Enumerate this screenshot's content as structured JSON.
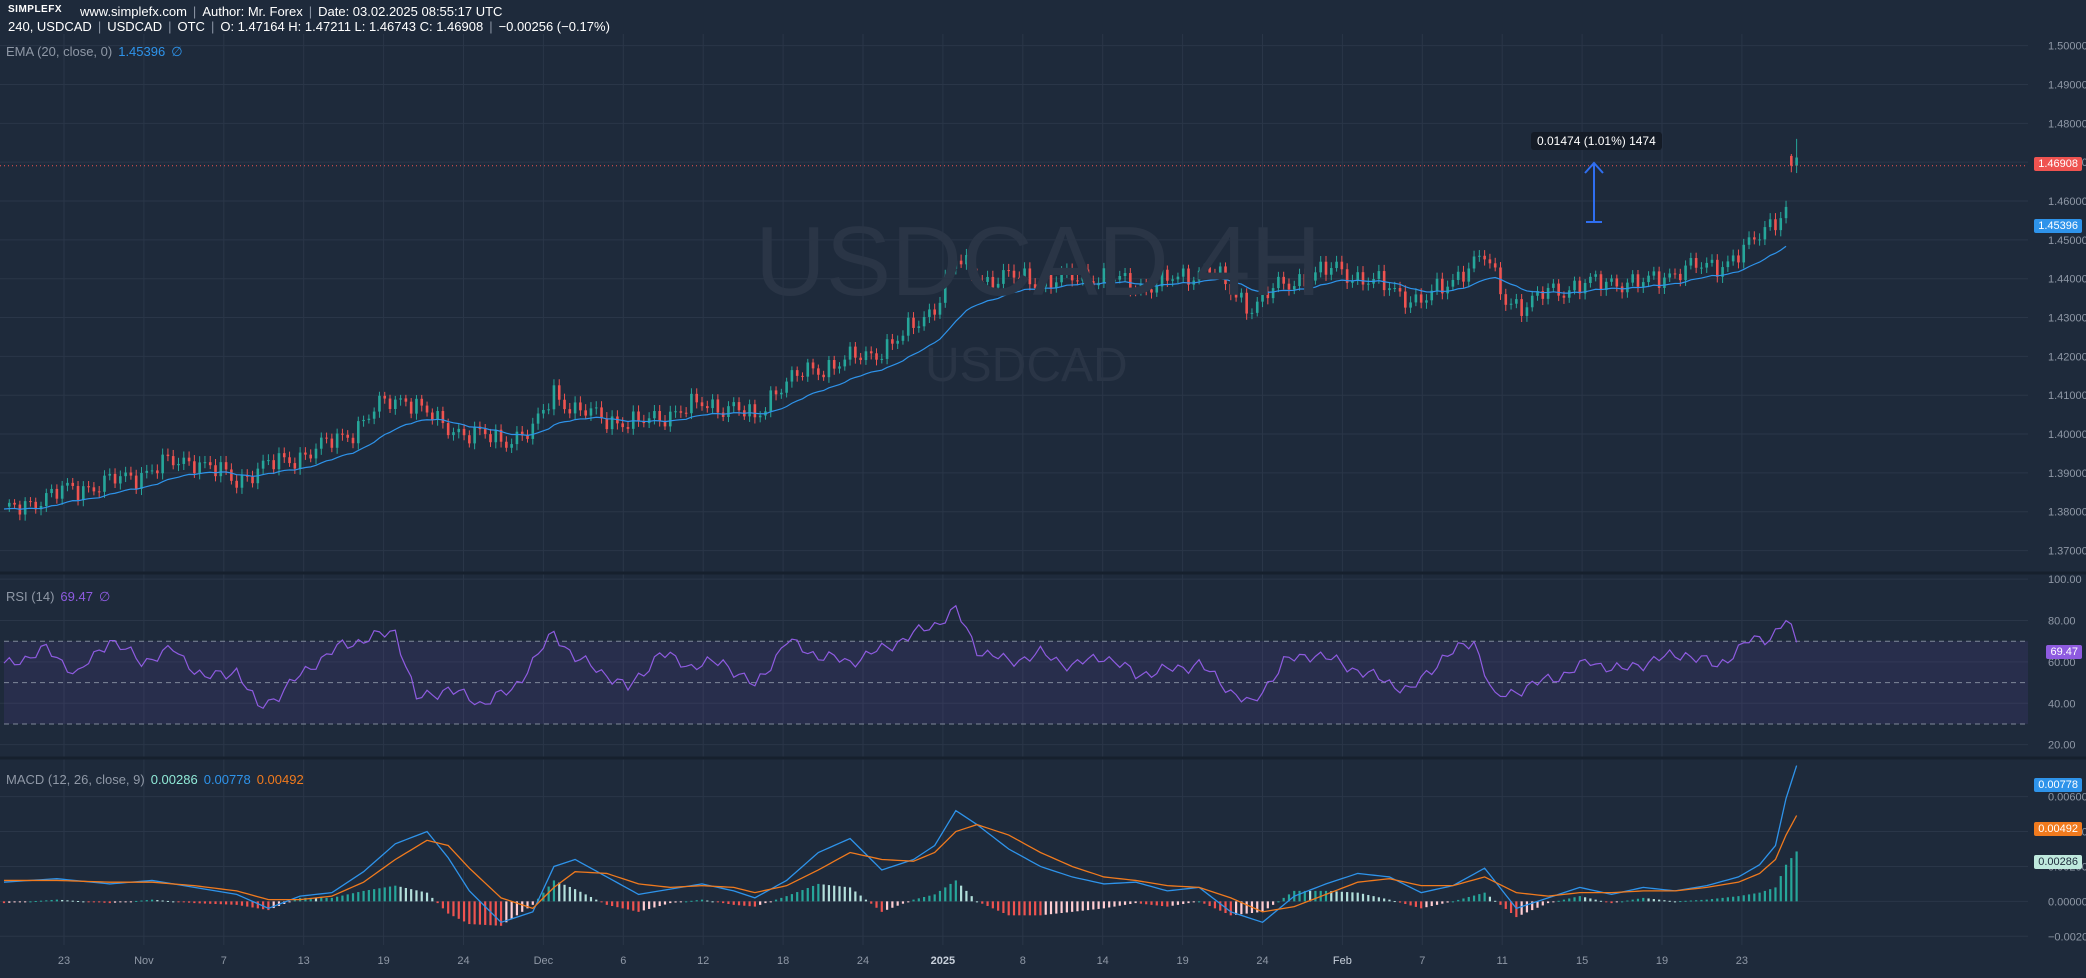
{
  "header": {
    "logo": "SIMPLEFX",
    "site": "www.simplefx.com",
    "author": "Author: Mr. Forex",
    "date": "Date: 03.02.2025 08:55:17 UTC",
    "interval": "240, USDCAD",
    "symbol": "USDCAD",
    "exchange": "OTC",
    "ohlc": "O: 1.47164 H: 1.47211 L: 1.46743 C: 1.46908",
    "change": "−0.00256 (−0.17%)"
  },
  "watermark": {
    "title": "USDCAD 4H",
    "symbol": "USDCAD"
  },
  "ema_legend": {
    "label": "EMA (20, close, 0)",
    "value": "1.45396",
    "icon": "∅"
  },
  "rsi_legend": {
    "label": "RSI (14)",
    "value": "69.47",
    "icon": "∅"
  },
  "macd_legend": {
    "label": "MACD (12, 26, close, 9)",
    "hist": "0.00286",
    "macd": "0.00778",
    "signal": "0.00492"
  },
  "callout": "0.01474 (1.01%) 1474",
  "badges": {
    "last_price": "1.46908",
    "ema": "1.45396",
    "rsi": "69.47",
    "macd": "0.00778",
    "signal": "0.00492",
    "hist": "0.00286"
  },
  "colors": {
    "background": "#1e2a3b",
    "up": "#26a69a",
    "down": "#ef5350",
    "ema": "#2e93ea",
    "rsi": "#8e5be0",
    "macd": "#2e93ea",
    "signal": "#f07a1e",
    "grid": "#2a3648"
  },
  "chart_data": [
    {
      "type": "candlestick",
      "title": "USDCAD 4H",
      "y_ticks": [
        "1.50000",
        "1.49000",
        "1.48000",
        "1.47000",
        "1.46000",
        "1.45000",
        "1.44000",
        "1.43000",
        "1.42000",
        "1.41000",
        "1.40000",
        "1.39000",
        "1.38000",
        "1.37000"
      ],
      "ylim": [
        1.365,
        1.503
      ],
      "x_ticks": [
        "23",
        "Nov",
        "7",
        "13",
        "19",
        "24",
        "Dec",
        "6",
        "12",
        "18",
        "24",
        "2025",
        "8",
        "14",
        "19",
        "24",
        "Feb",
        "7",
        "11",
        "15",
        "19",
        "23"
      ],
      "close_path": [
        [
          0,
          1.3795
        ],
        [
          6,
          1.383
        ],
        [
          12,
          1.3855
        ],
        [
          18,
          1.387
        ],
        [
          24,
          1.389
        ],
        [
          30,
          1.392
        ],
        [
          36,
          1.3935
        ],
        [
          40,
          1.3905
        ],
        [
          44,
          1.388
        ],
        [
          48,
          1.391
        ],
        [
          54,
          1.3935
        ],
        [
          60,
          1.3965
        ],
        [
          66,
          1.401
        ],
        [
          72,
          1.408
        ],
        [
          76,
          1.4095
        ],
        [
          82,
          1.403
        ],
        [
          88,
          1.4
        ],
        [
          94,
          1.3985
        ],
        [
          100,
          1.4005
        ],
        [
          104,
          1.411
        ],
        [
          108,
          1.406
        ],
        [
          114,
          1.404
        ],
        [
          120,
          1.4025
        ],
        [
          126,
          1.4055
        ],
        [
          132,
          1.4075
        ],
        [
          138,
          1.407
        ],
        [
          142,
          1.4035
        ],
        [
          146,
          1.412
        ],
        [
          152,
          1.416
        ],
        [
          158,
          1.4185
        ],
        [
          164,
          1.4205
        ],
        [
          170,
          1.425
        ],
        [
          176,
          1.433
        ],
        [
          180,
          1.4445
        ],
        [
          186,
          1.4395
        ],
        [
          192,
          1.4405
        ],
        [
          198,
          1.439
        ],
        [
          204,
          1.441
        ],
        [
          210,
          1.4395
        ],
        [
          216,
          1.438
        ],
        [
          222,
          1.44
        ],
        [
          228,
          1.443
        ],
        [
          232,
          1.4365
        ],
        [
          236,
          1.433
        ],
        [
          240,
          1.437
        ],
        [
          246,
          1.4405
        ],
        [
          252,
          1.4425
        ],
        [
          256,
          1.4405
        ],
        [
          262,
          1.4375
        ],
        [
          268,
          1.434
        ],
        [
          272,
          1.4375
        ],
        [
          276,
          1.4425
        ],
        [
          280,
          1.4455
        ],
        [
          284,
          1.435
        ],
        [
          288,
          1.4325
        ],
        [
          292,
          1.437
        ],
        [
          298,
          1.438
        ],
        [
          304,
          1.4395
        ],
        [
          310,
          1.4385
        ],
        [
          314,
          1.441
        ],
        [
          318,
          1.4425
        ],
        [
          322,
          1.443
        ],
        [
          326,
          1.4445
        ],
        [
          330,
          1.448
        ],
        [
          334,
          1.4545
        ],
        [
          337,
          1.458
        ]
      ],
      "extra_candles": [
        [
          338,
          1.4716,
          1.4721,
          1.4674,
          1.4691
        ],
        [
          339,
          1.4691,
          1.476,
          1.4672,
          1.4712
        ]
      ],
      "series": [
        {
          "name": "EMA (20, close, 0)",
          "last": 1.45396
        }
      ],
      "last_price": 1.46908,
      "measure": {
        "label": "0.01474 (1.01%) 1474"
      }
    },
    {
      "type": "line",
      "title": "RSI (14)",
      "y_ticks": [
        "100.00",
        "80.00",
        "60.00",
        "40.00",
        "20.00"
      ],
      "ylim": [
        15,
        102
      ],
      "bands": [
        30,
        50,
        70
      ],
      "path": [
        [
          0,
          58
        ],
        [
          8,
          66
        ],
        [
          14,
          54
        ],
        [
          20,
          71
        ],
        [
          26,
          60
        ],
        [
          32,
          66
        ],
        [
          38,
          52
        ],
        [
          44,
          56
        ],
        [
          48,
          38
        ],
        [
          52,
          44
        ],
        [
          58,
          58
        ],
        [
          64,
          68
        ],
        [
          70,
          72
        ],
        [
          74,
          75
        ],
        [
          78,
          42
        ],
        [
          84,
          47
        ],
        [
          90,
          40
        ],
        [
          96,
          46
        ],
        [
          100,
          60
        ],
        [
          104,
          74
        ],
        [
          108,
          62
        ],
        [
          114,
          54
        ],
        [
          118,
          47
        ],
        [
          124,
          64
        ],
        [
          130,
          58
        ],
        [
          136,
          60
        ],
        [
          142,
          48
        ],
        [
          148,
          70
        ],
        [
          154,
          63
        ],
        [
          160,
          60
        ],
        [
          166,
          66
        ],
        [
          170,
          71
        ],
        [
          176,
          78
        ],
        [
          180,
          85
        ],
        [
          184,
          66
        ],
        [
          190,
          60
        ],
        [
          196,
          64
        ],
        [
          202,
          58
        ],
        [
          208,
          63
        ],
        [
          214,
          54
        ],
        [
          220,
          56
        ],
        [
          226,
          59
        ],
        [
          232,
          46
        ],
        [
          236,
          39
        ],
        [
          242,
          60
        ],
        [
          248,
          64
        ],
        [
          254,
          58
        ],
        [
          260,
          52
        ],
        [
          266,
          46
        ],
        [
          272,
          62
        ],
        [
          278,
          70
        ],
        [
          282,
          42
        ],
        [
          288,
          48
        ],
        [
          294,
          53
        ],
        [
          300,
          60
        ],
        [
          306,
          56
        ],
        [
          312,
          61
        ],
        [
          318,
          64
        ],
        [
          324,
          58
        ],
        [
          330,
          70
        ],
        [
          334,
          72
        ],
        [
          337,
          80
        ],
        [
          339,
          69.47
        ]
      ],
      "last": 69.47
    },
    {
      "type": "macd",
      "title": "MACD (12, 26, close, 9)",
      "y_ticks": [
        "0.00600",
        "0.00400",
        "0.00200",
        "0.00000",
        "−0.00200"
      ],
      "ylim": [
        -0.0025,
        0.0081
      ],
      "macd_path": [
        [
          0,
          0.0011
        ],
        [
          10,
          0.0013
        ],
        [
          20,
          0.001
        ],
        [
          28,
          0.0012
        ],
        [
          36,
          0.0008
        ],
        [
          44,
          0.0004
        ],
        [
          50,
          -0.0004
        ],
        [
          56,
          0.0003
        ],
        [
          62,
          0.0005
        ],
        [
          68,
          0.0017
        ],
        [
          74,
          0.0033
        ],
        [
          80,
          0.004
        ],
        [
          84,
          0.0025
        ],
        [
          88,
          0.0006
        ],
        [
          94,
          -0.0012
        ],
        [
          100,
          -0.0006
        ],
        [
          104,
          0.002
        ],
        [
          108,
          0.0024
        ],
        [
          114,
          0.0014
        ],
        [
          120,
          0.0004
        ],
        [
          126,
          0.0007
        ],
        [
          132,
          0.001
        ],
        [
          138,
          0.0006
        ],
        [
          142,
          0.0002
        ],
        [
          148,
          0.0012
        ],
        [
          154,
          0.0028
        ],
        [
          160,
          0.0036
        ],
        [
          166,
          0.0018
        ],
        [
          172,
          0.0024
        ],
        [
          176,
          0.0032
        ],
        [
          180,
          0.0052
        ],
        [
          184,
          0.0044
        ],
        [
          190,
          0.003
        ],
        [
          196,
          0.002
        ],
        [
          202,
          0.0014
        ],
        [
          208,
          0.001
        ],
        [
          214,
          0.0011
        ],
        [
          220,
          0.0006
        ],
        [
          226,
          0.0008
        ],
        [
          232,
          -0.0006
        ],
        [
          238,
          -0.0012
        ],
        [
          244,
          0.0003
        ],
        [
          250,
          0.001
        ],
        [
          256,
          0.0016
        ],
        [
          262,
          0.0014
        ],
        [
          268,
          0.0005
        ],
        [
          274,
          0.0009
        ],
        [
          280,
          0.0019
        ],
        [
          286,
          -0.0004
        ],
        [
          292,
          0.0002
        ],
        [
          298,
          0.0008
        ],
        [
          304,
          0.0004
        ],
        [
          310,
          0.0008
        ],
        [
          316,
          0.0006
        ],
        [
          322,
          0.0009
        ],
        [
          328,
          0.0014
        ],
        [
          332,
          0.0021
        ],
        [
          335,
          0.0032
        ],
        [
          337,
          0.0059
        ],
        [
          339,
          0.00778
        ]
      ],
      "signal_path": [
        [
          0,
          0.0012
        ],
        [
          10,
          0.0012
        ],
        [
          20,
          0.0011
        ],
        [
          28,
          0.0011
        ],
        [
          36,
          0.0009
        ],
        [
          44,
          0.0006
        ],
        [
          50,
          0.0001
        ],
        [
          56,
          0.0001
        ],
        [
          62,
          0.0003
        ],
        [
          68,
          0.0011
        ],
        [
          74,
          0.0024
        ],
        [
          80,
          0.0035
        ],
        [
          84,
          0.0032
        ],
        [
          88,
          0.0019
        ],
        [
          94,
          0.0002
        ],
        [
          100,
          -0.0004
        ],
        [
          104,
          0.0008
        ],
        [
          108,
          0.0017
        ],
        [
          114,
          0.0016
        ],
        [
          120,
          0.001
        ],
        [
          126,
          0.0008
        ],
        [
          132,
          0.0009
        ],
        [
          138,
          0.0008
        ],
        [
          142,
          0.0005
        ],
        [
          148,
          0.0009
        ],
        [
          154,
          0.0018
        ],
        [
          160,
          0.0028
        ],
        [
          166,
          0.0024
        ],
        [
          172,
          0.0023
        ],
        [
          176,
          0.0028
        ],
        [
          180,
          0.004
        ],
        [
          184,
          0.0044
        ],
        [
          190,
          0.0038
        ],
        [
          196,
          0.0028
        ],
        [
          202,
          0.002
        ],
        [
          208,
          0.0014
        ],
        [
          214,
          0.0012
        ],
        [
          220,
          0.0009
        ],
        [
          226,
          0.0008
        ],
        [
          232,
          0.0002
        ],
        [
          238,
          -0.0006
        ],
        [
          244,
          -0.0003
        ],
        [
          250,
          0.0004
        ],
        [
          256,
          0.0011
        ],
        [
          262,
          0.0013
        ],
        [
          268,
          0.0009
        ],
        [
          274,
          0.0009
        ],
        [
          280,
          0.0014
        ],
        [
          286,
          0.0005
        ],
        [
          292,
          0.0003
        ],
        [
          298,
          0.0005
        ],
        [
          304,
          0.0005
        ],
        [
          310,
          0.0006
        ],
        [
          316,
          0.0006
        ],
        [
          322,
          0.0008
        ],
        [
          328,
          0.0011
        ],
        [
          332,
          0.0016
        ],
        [
          335,
          0.0024
        ],
        [
          337,
          0.0038
        ],
        [
          339,
          0.00492
        ]
      ],
      "hist_last": 0.00286,
      "macd_last": 0.00778,
      "signal_last": 0.00492
    }
  ]
}
